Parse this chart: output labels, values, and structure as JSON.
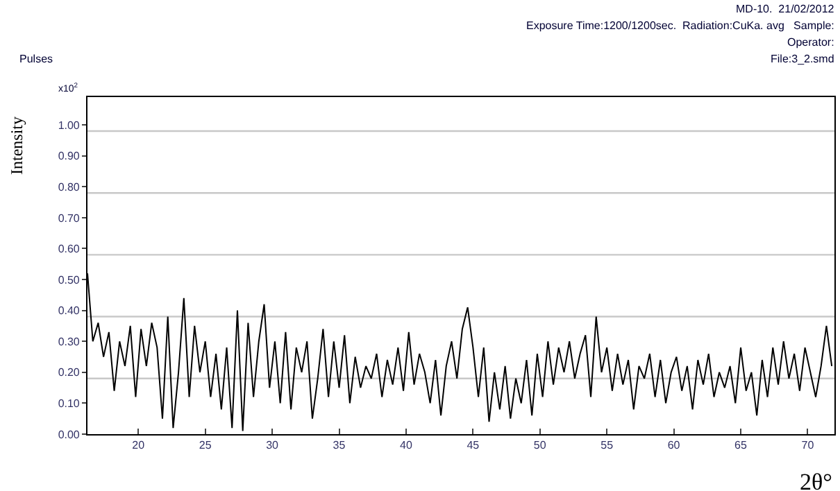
{
  "chart_data": {
    "type": "line",
    "xlabel": "2θ°",
    "ylabel": "Intensity",
    "annotations": [
      "MD-10.  21/02/2012",
      "Exposure Time:1200/1200sec.  Radiation:CuKa. avg   Sample:",
      "Operator:",
      "File:3_2.smd",
      "Pulses",
      "x10$^{2}$"
    ],
    "x": [
      16.2,
      16.6,
      17.0,
      17.4,
      17.8,
      18.2,
      18.6,
      19.0,
      19.4,
      19.8,
      20.2,
      20.6,
      21.0,
      21.4,
      21.8,
      22.2,
      22.6,
      23.0,
      23.4,
      23.8,
      24.2,
      24.6,
      25.0,
      25.4,
      25.8,
      26.2,
      26.6,
      27.0,
      27.4,
      27.8,
      28.2,
      28.6,
      29.0,
      29.4,
      29.8,
      30.2,
      30.6,
      31.0,
      31.4,
      31.8,
      32.2,
      32.6,
      33.0,
      33.4,
      33.8,
      34.2,
      34.6,
      35.0,
      35.4,
      35.8,
      36.2,
      36.6,
      37.0,
      37.4,
      37.8,
      38.2,
      38.6,
      39.0,
      39.4,
      39.8,
      40.2,
      40.6,
      41.0,
      41.4,
      41.8,
      42.2,
      42.6,
      43.0,
      43.4,
      43.8,
      44.2,
      44.6,
      45.0,
      45.4,
      45.8,
      46.2,
      46.6,
      47.0,
      47.4,
      47.8,
      48.2,
      48.6,
      49.0,
      49.4,
      49.8,
      50.2,
      50.6,
      51.0,
      51.4,
      51.8,
      52.2,
      52.6,
      53.0,
      53.4,
      53.8,
      54.2,
      54.6,
      55.0,
      55.4,
      55.8,
      56.2,
      56.6,
      57.0,
      57.4,
      57.8,
      58.2,
      58.6,
      59.0,
      59.4,
      59.8,
      60.2,
      60.6,
      61.0,
      61.4,
      61.8,
      62.2,
      62.6,
      63.0,
      63.4,
      63.8,
      64.2,
      64.6,
      65.0,
      65.4,
      65.8,
      66.2,
      66.6,
      67.0,
      67.4,
      67.8,
      68.2,
      68.6,
      69.0,
      69.4,
      69.8,
      70.2,
      70.6,
      71.0,
      71.4,
      71.8
    ],
    "series": [
      {
        "color": "#000000",
        "values": [
          0.52,
          0.3,
          0.36,
          0.25,
          0.33,
          0.14,
          0.3,
          0.22,
          0.35,
          0.12,
          0.34,
          0.22,
          0.36,
          0.28,
          0.05,
          0.38,
          0.02,
          0.2,
          0.44,
          0.12,
          0.35,
          0.2,
          0.3,
          0.12,
          0.26,
          0.08,
          0.28,
          0.02,
          0.4,
          0.01,
          0.36,
          0.12,
          0.3,
          0.42,
          0.15,
          0.3,
          0.1,
          0.33,
          0.08,
          0.28,
          0.2,
          0.3,
          0.05,
          0.18,
          0.34,
          0.12,
          0.3,
          0.15,
          0.32,
          0.1,
          0.25,
          0.15,
          0.22,
          0.18,
          0.26,
          0.12,
          0.24,
          0.16,
          0.28,
          0.14,
          0.33,
          0.16,
          0.26,
          0.2,
          0.1,
          0.24,
          0.06,
          0.22,
          0.3,
          0.18,
          0.34,
          0.41,
          0.28,
          0.12,
          0.28,
          0.04,
          0.2,
          0.08,
          0.22,
          0.05,
          0.18,
          0.1,
          0.24,
          0.06,
          0.26,
          0.12,
          0.3,
          0.16,
          0.28,
          0.2,
          0.3,
          0.18,
          0.26,
          0.32,
          0.12,
          0.38,
          0.2,
          0.28,
          0.14,
          0.26,
          0.16,
          0.24,
          0.08,
          0.22,
          0.18,
          0.26,
          0.12,
          0.24,
          0.1,
          0.2,
          0.25,
          0.14,
          0.22,
          0.08,
          0.24,
          0.16,
          0.26,
          0.12,
          0.2,
          0.15,
          0.22,
          0.1,
          0.28,
          0.14,
          0.2,
          0.06,
          0.24,
          0.12,
          0.28,
          0.16,
          0.3,
          0.18,
          0.26,
          0.14,
          0.28,
          0.2,
          0.12,
          0.22,
          0.35,
          0.22
        ]
      }
    ],
    "xlim": [
      16.2,
      72.0
    ],
    "ylim": [
      0.0,
      1.09
    ],
    "xticks": [
      20,
      25,
      30,
      35,
      40,
      45,
      50,
      55,
      60,
      65,
      70
    ],
    "yticks": [
      {
        "value": 0,
        "label": "0.00"
      },
      {
        "value": 0.1,
        "label": "0.10"
      },
      {
        "value": 0.2,
        "label": "0.20"
      },
      {
        "value": 0.3,
        "label": "0.30"
      },
      {
        "value": 0.4,
        "label": "0.40"
      },
      {
        "value": 0.5,
        "label": "0.50"
      },
      {
        "value": 0.6,
        "label": "0.60"
      },
      {
        "value": 0.7,
        "label": "0.70"
      },
      {
        "value": 0.8,
        "label": "0.80"
      },
      {
        "value": 0.9,
        "label": "0.90"
      },
      {
        "value": 1.0,
        "label": "1.00"
      }
    ],
    "ref_lines": [
      {
        "axis": "y",
        "value": 0.18,
        "color": "#c8c8c8"
      },
      {
        "axis": "y",
        "value": 0.38,
        "color": "#c8c8c8"
      },
      {
        "axis": "y",
        "value": 0.58,
        "color": "#c8c8c8"
      },
      {
        "axis": "y",
        "value": 0.78,
        "color": "#c8c8c8"
      },
      {
        "axis": "y",
        "value": 0.98,
        "color": "#c8c8c8"
      }
    ],
    "grid": false,
    "marker": "none",
    "line_style": "solid"
  }
}
